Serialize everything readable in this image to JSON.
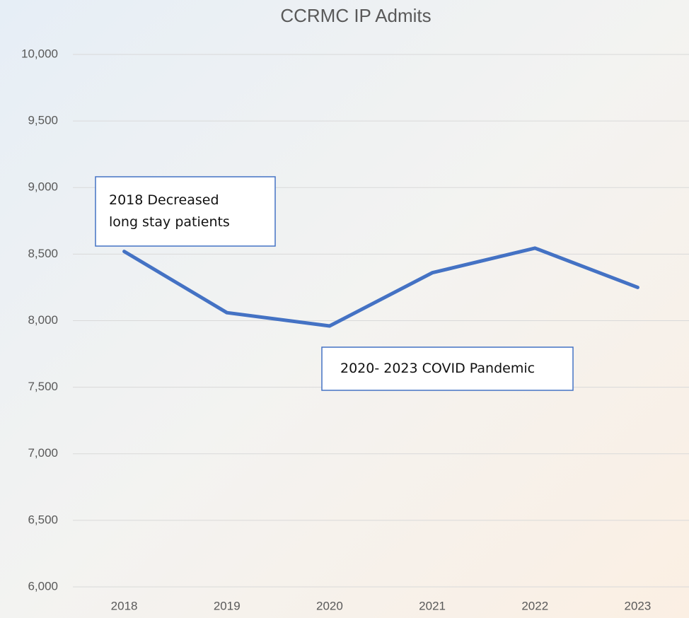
{
  "chart_data": {
    "type": "line",
    "title": "CCRMC IP Admits",
    "categories": [
      "2018",
      "2019",
      "2020",
      "2021",
      "2022",
      "2023"
    ],
    "series": [
      {
        "name": "IP Admits",
        "color": "#4472c4",
        "values": [
          8520,
          8060,
          7960,
          8360,
          8545,
          8250
        ]
      }
    ],
    "ylim": [
      6000,
      10000
    ],
    "yticks": [
      {
        "value": 6000,
        "label": "6,000"
      },
      {
        "value": 6500,
        "label": "6,500"
      },
      {
        "value": 7000,
        "label": "7,000"
      },
      {
        "value": 7500,
        "label": "7,500"
      },
      {
        "value": 8000,
        "label": "8,000"
      },
      {
        "value": 8500,
        "label": "8,500"
      },
      {
        "value": 9000,
        "label": "9,000"
      },
      {
        "value": 9500,
        "label": "9,500"
      },
      {
        "value": 10000,
        "label": "10,000"
      }
    ],
    "grid": true,
    "annotations": [
      {
        "lines": [
          "2018 Decreased",
          "long stay patients"
        ]
      },
      {
        "lines": [
          "2020- 2023 COVID Pandemic"
        ]
      }
    ]
  }
}
